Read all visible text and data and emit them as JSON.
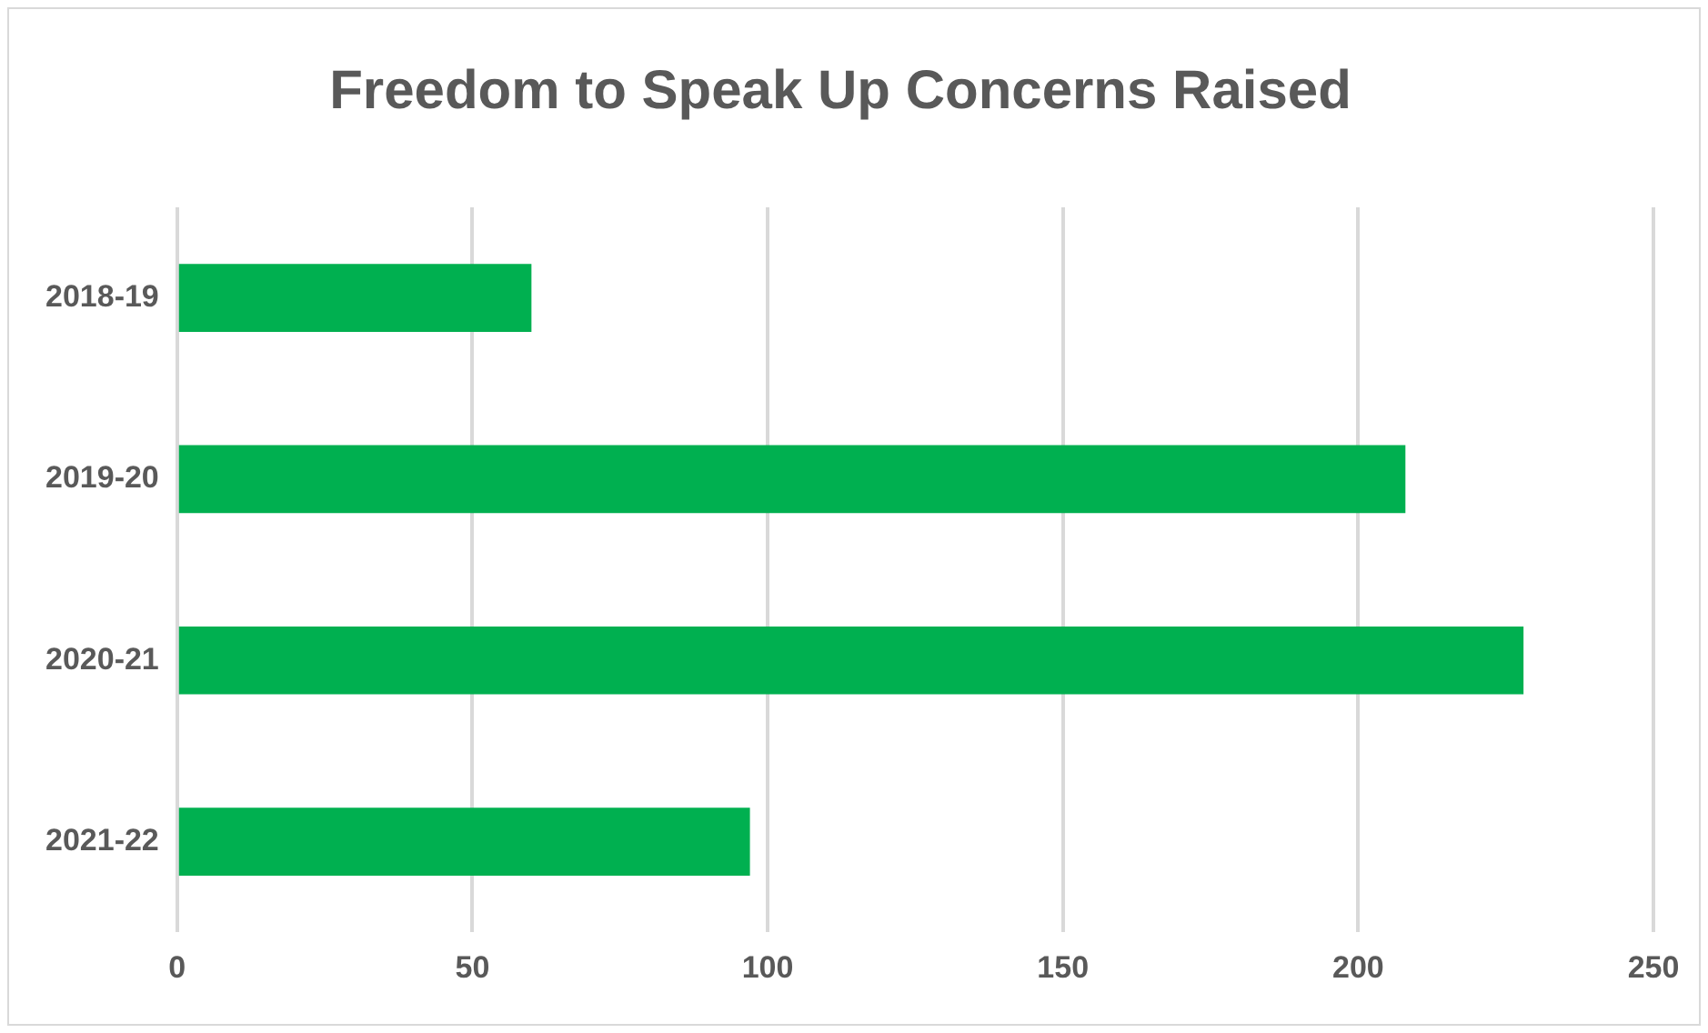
{
  "chart_data": {
    "type": "bar",
    "orientation": "horizontal",
    "title": "Freedom to Speak Up Concerns Raised",
    "categories": [
      "2018-19",
      "2019-20",
      "2020-21",
      "2021-22"
    ],
    "values": [
      60,
      208,
      228,
      97
    ],
    "color": "#00b050",
    "xlim": [
      0,
      250
    ],
    "xticks": [
      0,
      50,
      100,
      150,
      200,
      250
    ],
    "grid": "x",
    "legend": false
  }
}
